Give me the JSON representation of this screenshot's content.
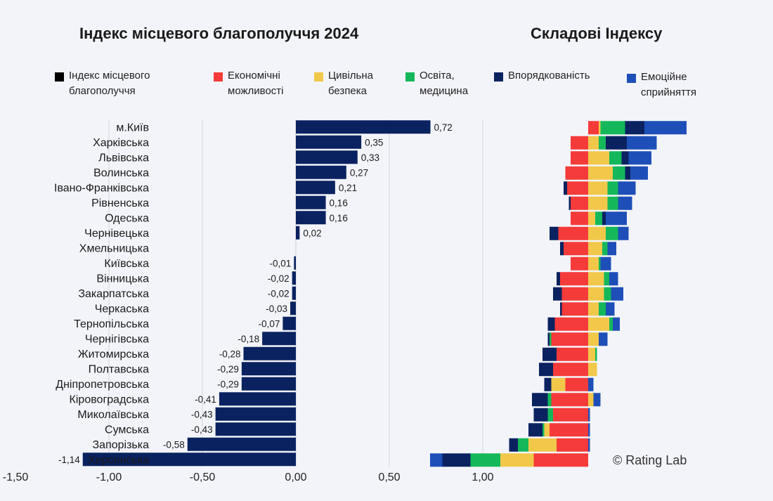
{
  "titles": {
    "left": "Індекс місцевого благополуччя 2024",
    "right": "Складові Індексу"
  },
  "legend": [
    {
      "lines": [
        "Індекс місцевого",
        "благополуччя"
      ],
      "color": "#000000"
    },
    {
      "lines": [
        "Економічні",
        "можливості"
      ],
      "color": "#f53a3a"
    },
    {
      "lines": [
        "Цивільна",
        "безпека"
      ],
      "color": "#f2c84b"
    },
    {
      "lines": [
        "Освіта,",
        "медицина"
      ],
      "color": "#14b85a"
    },
    {
      "lines": [
        "Впорядкованість"
      ],
      "color": "#0a2260"
    },
    {
      "lines": [
        "Емоційне",
        "сприйняття"
      ],
      "color": "#1e4fb8"
    }
  ],
  "copyright": "© Rating Lab",
  "chart_data": [
    {
      "type": "bar",
      "orientation": "horizontal",
      "title": "Індекс місцевого благополуччя 2024",
      "categories": [
        "м.Київ",
        "Харківська",
        "Львівська",
        "Волинська",
        "Івано-Франківська",
        "Рівненська",
        "Одеська",
        "Чернівецька",
        "Хмельницька",
        "Київська",
        "Вінницька",
        "Закарпатська",
        "Черкаська",
        "Тернопільська",
        "Чернігівська",
        "Житомирська",
        "Полтавська",
        "Дніпропетровська",
        "Кіровоградська",
        "Миколаївська",
        "Сумська",
        "Запорізька",
        "Херсонська"
      ],
      "values": [
        0.72,
        0.35,
        0.33,
        0.27,
        0.21,
        0.16,
        0.16,
        0.02,
        0,
        -0.01,
        -0.02,
        -0.02,
        -0.03,
        -0.07,
        -0.18,
        -0.28,
        -0.29,
        -0.29,
        -0.41,
        -0.43,
        -0.43,
        -0.58,
        -1.14
      ],
      "value_labels": [
        "0,72",
        "0,35",
        "0,33",
        "0,27",
        "0,21",
        "0,16",
        "0,16",
        "0,02",
        "",
        "-0,01",
        "-0,02",
        "-0,02",
        "-0,03",
        "-0,07",
        "-0,18",
        "-0,28",
        "-0,29",
        "-0,29",
        "-0,41",
        "-0,43",
        "-0,43",
        "-0,58",
        "-1,14"
      ],
      "xlim": [
        -1.5,
        1.0
      ],
      "xticks": [
        -1.5,
        -1.0,
        -0.5,
        0,
        0.5,
        1.0
      ],
      "xtick_labels": [
        "-1,50",
        "-1,00",
        "-0,50",
        "0,00",
        "0,50",
        "1,00"
      ],
      "bar_color": "#0a2260",
      "grid": true
    },
    {
      "type": "bar",
      "orientation": "horizontal",
      "stacked": true,
      "diverging": true,
      "title": "Складові Індексу",
      "categories": [
        "м.Київ",
        "Харківська",
        "Львівська",
        "Волинська",
        "Івано-Франківська",
        "Рівненська",
        "Одеська",
        "Чернівецька",
        "Хмельницька",
        "Київська",
        "Вінницька",
        "Закарпатська",
        "Черкаська",
        "Тернопільська",
        "Чернігівська",
        "Житомирська",
        "Полтавська",
        "Дніпропетровська",
        "Кіровоградська",
        "Миколаївська",
        "Сумська",
        "Запорізька",
        "Херсонська"
      ],
      "series": [
        {
          "name": "Економічні можливості",
          "color": "#f53a3a",
          "values": [
            0.06,
            -0.1,
            -0.1,
            -0.13,
            -0.12,
            -0.1,
            -0.1,
            -0.17,
            -0.14,
            -0.1,
            -0.16,
            -0.15,
            -0.15,
            -0.19,
            -0.21,
            -0.18,
            -0.2,
            -0.13,
            -0.21,
            -0.2,
            -0.22,
            -0.18,
            -0.31
          ]
        },
        {
          "name": "Цивільна безпека",
          "color": "#f2c84b",
          "values": [
            0.01,
            0.06,
            0.12,
            0.14,
            0.11,
            0.11,
            0.04,
            0.1,
            0.08,
            0.06,
            0.09,
            0.09,
            0.06,
            0.12,
            0.06,
            0.04,
            0.05,
            -0.08,
            0.03,
            0.0,
            -0.03,
            -0.16,
            -0.19
          ]
        },
        {
          "name": "Освіта, медицина",
          "color": "#14b85a",
          "values": [
            0.14,
            0.04,
            0.07,
            0.07,
            0.06,
            0.06,
            0.04,
            0.07,
            0.03,
            0.01,
            0.03,
            0.04,
            0.04,
            0.02,
            -0.01,
            0.01,
            0.0,
            0.0,
            -0.02,
            -0.03,
            -0.01,
            -0.06,
            -0.17
          ]
        },
        {
          "name": "Впорядкованість",
          "color": "#0a2260",
          "values": [
            0.11,
            0.12,
            0.04,
            0.03,
            -0.02,
            -0.01,
            0.02,
            -0.05,
            -0.02,
            0.0,
            -0.02,
            -0.05,
            -0.01,
            -0.04,
            -0.01,
            -0.08,
            -0.08,
            -0.04,
            -0.09,
            -0.08,
            -0.08,
            -0.05,
            -0.16
          ]
        },
        {
          "name": "Емоційне сприйняття",
          "color": "#1e4fb8",
          "values": [
            0.24,
            0.17,
            0.13,
            0.1,
            0.1,
            0.08,
            0.12,
            0.06,
            0.05,
            0.06,
            0.05,
            0.07,
            0.05,
            0.04,
            0.05,
            0.0,
            0.0,
            0.03,
            0.04,
            0.01,
            0.01,
            0.01,
            -0.07
          ]
        }
      ]
    }
  ]
}
